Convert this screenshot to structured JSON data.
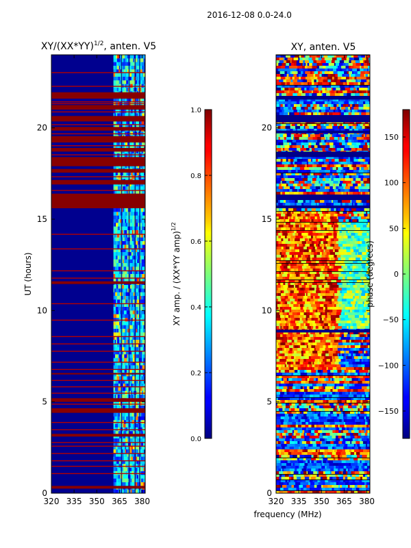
{
  "figure": {
    "suptitle": "2016-12-08 0.0-24.0",
    "xlabel_shared": "frequency (MHz)"
  },
  "chart_data": [
    {
      "type": "heatmap",
      "title": "XY/(XX*YY)",
      "title_sup": "1/2",
      "title_suffix": ", anten. V5",
      "xlabel": "",
      "ylabel": "UT (hours)",
      "xlim": [
        320,
        382
      ],
      "ylim": [
        0,
        24
      ],
      "xticks": [
        320,
        335,
        350,
        365,
        380
      ],
      "yticks": [
        0,
        5,
        10,
        15,
        20
      ],
      "colormap": "jet",
      "colorbar": {
        "label": "XY amp. / (XX*YY amp)",
        "label_sup": "1/2",
        "range": [
          0.0,
          1.0
        ],
        "ticks": [
          "0.0",
          "0.2",
          "0.4",
          "0.6",
          "0.8",
          "1.0"
        ]
      },
      "full_flag_bands_hours": [
        [
          21.6,
          21.95
        ],
        [
          21.0,
          21.25
        ],
        [
          20.35,
          20.65
        ],
        [
          19.85,
          20.05
        ],
        [
          19.2,
          19.55
        ],
        [
          18.7,
          18.9
        ],
        [
          17.9,
          18.4
        ],
        [
          17.55,
          17.75
        ],
        [
          16.9,
          17.15
        ],
        [
          15.6,
          16.4
        ],
        [
          11.45,
          11.6
        ],
        [
          6.5,
          6.58
        ],
        [
          5.0,
          5.2
        ],
        [
          4.4,
          4.65
        ],
        [
          3.1,
          3.25
        ],
        [
          0.25,
          0.4
        ]
      ],
      "flag_lines_hours": [
        23.05,
        22.3,
        21.45,
        21.35,
        20.9,
        20.2,
        19.7,
        19.05,
        18.55,
        17.35,
        16.6,
        14.2,
        13.4,
        12.2,
        11.8,
        10.4,
        9.5,
        8.6,
        8.2,
        7.8,
        7.2,
        6.8,
        6.2,
        5.85,
        5.5,
        4.9,
        3.9,
        3.5,
        2.8,
        2.6,
        2.2,
        1.8,
        1.5,
        1.1
      ],
      "active_band_mhz": [
        361,
        381
      ]
    },
    {
      "type": "heatmap",
      "title": "XY, anten. V5",
      "xlabel": "frequency (MHz)",
      "ylabel": "",
      "xlim": [
        320,
        382
      ],
      "ylim": [
        0,
        24
      ],
      "xticks": [
        320,
        335,
        350,
        365,
        380
      ],
      "yticks": [
        0,
        5,
        10,
        15,
        20
      ],
      "colormap": "jet",
      "colorbar": {
        "label": "phase (degrees)",
        "range": [
          -180,
          180
        ],
        "ticks": [
          "150",
          "100",
          "50",
          "0",
          "−50",
          "−100",
          "−150"
        ],
        "tick_values": [
          150,
          100,
          50,
          0,
          -50,
          -100,
          -150
        ]
      },
      "dark_bands_hours": [
        [
          21.55,
          21.75
        ],
        [
          20.3,
          20.7
        ],
        [
          19.7,
          19.85
        ],
        [
          18.4,
          18.7
        ],
        [
          16.05,
          16.35
        ],
        [
          15.6,
          15.75
        ],
        [
          8.8,
          8.95
        ]
      ]
    }
  ]
}
